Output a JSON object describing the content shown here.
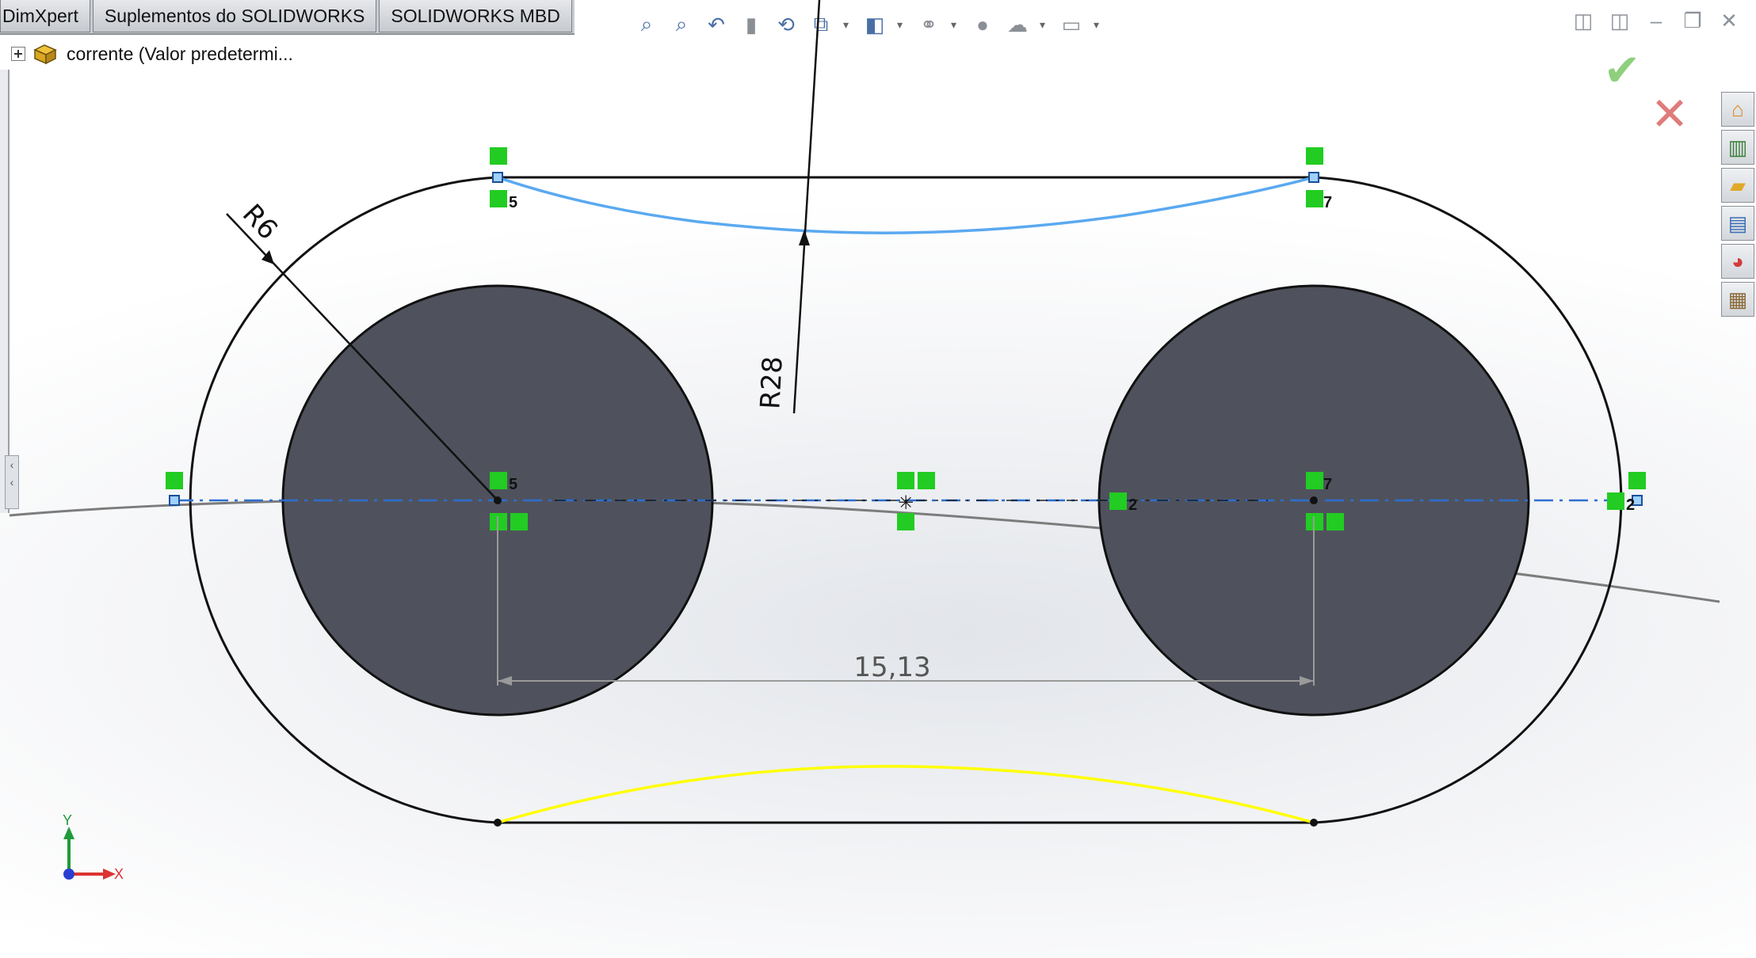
{
  "command_tabs": [
    "DimXpert",
    "Suplementos do SOLIDWORKS",
    "SOLIDWORKS MBD"
  ],
  "feature_tree": {
    "item_label": "corrente  (Valor predetermi..."
  },
  "heads_up_toolbar": [
    "zoom-to-fit-icon",
    "zoom-to-area-icon",
    "previous-view-icon",
    "section-view-icon",
    "dynamic-annotation-icon",
    "view-orientation-icon",
    "display-style-icon",
    "hide-show-items-icon",
    "edit-appearance-icon",
    "apply-scene-icon",
    "view-settings-icon"
  ],
  "confirm_corner": {
    "accept_icon": "check-icon",
    "cancel_icon": "x-icon",
    "accept_color": "#8fcf7d",
    "cancel_color": "#e07b7b"
  },
  "task_pane": [
    "home-icon",
    "design-library-icon",
    "file-explorer-icon",
    "view-palette-icon",
    "appearances-icon",
    "custom-properties-icon"
  ],
  "sketch": {
    "dimensions": {
      "radius_small": "R6",
      "radius_large": "R28",
      "center_distance": "15,13"
    },
    "relation_counts": {
      "left": "5",
      "right": "7",
      "point": "2"
    },
    "line_color": "#111111",
    "arc_top_color": "#5aa9f0",
    "arc_bottom_color": "#ffff00",
    "hole_fill": "#4f525c",
    "relation_color": "#22cc22"
  },
  "triad": {
    "x_label": "X",
    "y_label": "Y"
  }
}
